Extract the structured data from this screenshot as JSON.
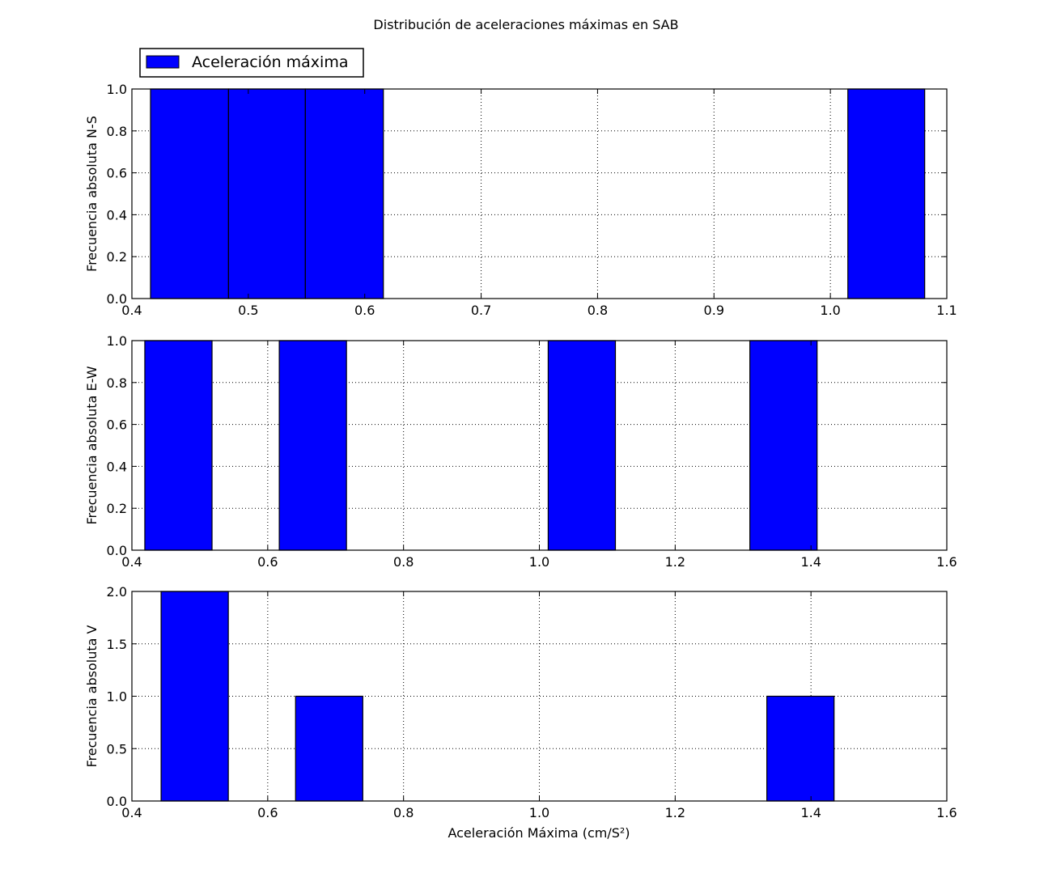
{
  "figure": {
    "title": "Distribución de aceleraciones máximas en SAB",
    "legend": {
      "label": "Aceleración máxima",
      "color": "#0000ff",
      "placement": "upper-left-outside"
    },
    "xlabel": "Aceleración Máxima (cm/S²)"
  },
  "chart_data": [
    {
      "type": "bar",
      "subtype": "histogram",
      "series": [
        {
          "name": "Aceleración máxima",
          "color": "#0000ff"
        }
      ],
      "ylabel": "Frecuencia absoluta N-S",
      "xlim": [
        0.4,
        1.1
      ],
      "ylim": [
        0.0,
        1.0
      ],
      "xticks": [
        "0.4",
        "0.5",
        "0.6",
        "0.7",
        "0.8",
        "0.9",
        "1.0",
        "1.1"
      ],
      "yticks": [
        "0.0",
        "0.2",
        "0.4",
        "0.6",
        "0.8",
        "1.0"
      ],
      "grid": true,
      "bins": [
        {
          "x0": 0.416,
          "x1": 0.483,
          "count": 1
        },
        {
          "x0": 0.483,
          "x1": 0.549,
          "count": 1
        },
        {
          "x0": 0.549,
          "x1": 0.616,
          "count": 1
        },
        {
          "x0": 1.015,
          "x1": 1.081,
          "count": 1
        }
      ]
    },
    {
      "type": "bar",
      "subtype": "histogram",
      "series": [
        {
          "name": "Aceleración máxima",
          "color": "#0000ff"
        }
      ],
      "ylabel": "Frecuencia absoluta E-W",
      "xlim": [
        0.4,
        1.6
      ],
      "ylim": [
        0.0,
        1.0
      ],
      "xticks": [
        "0.4",
        "0.6",
        "0.8",
        "1.0",
        "1.2",
        "1.4",
        "1.6"
      ],
      "yticks": [
        "0.0",
        "0.2",
        "0.4",
        "0.6",
        "0.8",
        "1.0"
      ],
      "grid": true,
      "bins": [
        {
          "x0": 0.419,
          "x1": 0.518,
          "count": 1
        },
        {
          "x0": 0.617,
          "x1": 0.716,
          "count": 1
        },
        {
          "x0": 1.013,
          "x1": 1.112,
          "count": 1
        },
        {
          "x0": 1.31,
          "x1": 1.409,
          "count": 1
        }
      ]
    },
    {
      "type": "bar",
      "subtype": "histogram",
      "series": [
        {
          "name": "Aceleración máxima",
          "color": "#0000ff"
        }
      ],
      "ylabel": "Frecuencia absoluta V",
      "xlim": [
        0.4,
        1.6
      ],
      "ylim": [
        0.0,
        2.0
      ],
      "xticks": [
        "0.4",
        "0.6",
        "0.8",
        "1.0",
        "1.2",
        "1.4",
        "1.6"
      ],
      "yticks": [
        "0.0",
        "0.5",
        "1.0",
        "1.5",
        "2.0"
      ],
      "grid": true,
      "bins": [
        {
          "x0": 0.443,
          "x1": 0.542,
          "count": 2
        },
        {
          "x0": 0.641,
          "x1": 0.74,
          "count": 1
        },
        {
          "x0": 1.335,
          "x1": 1.434,
          "count": 1
        }
      ]
    }
  ]
}
